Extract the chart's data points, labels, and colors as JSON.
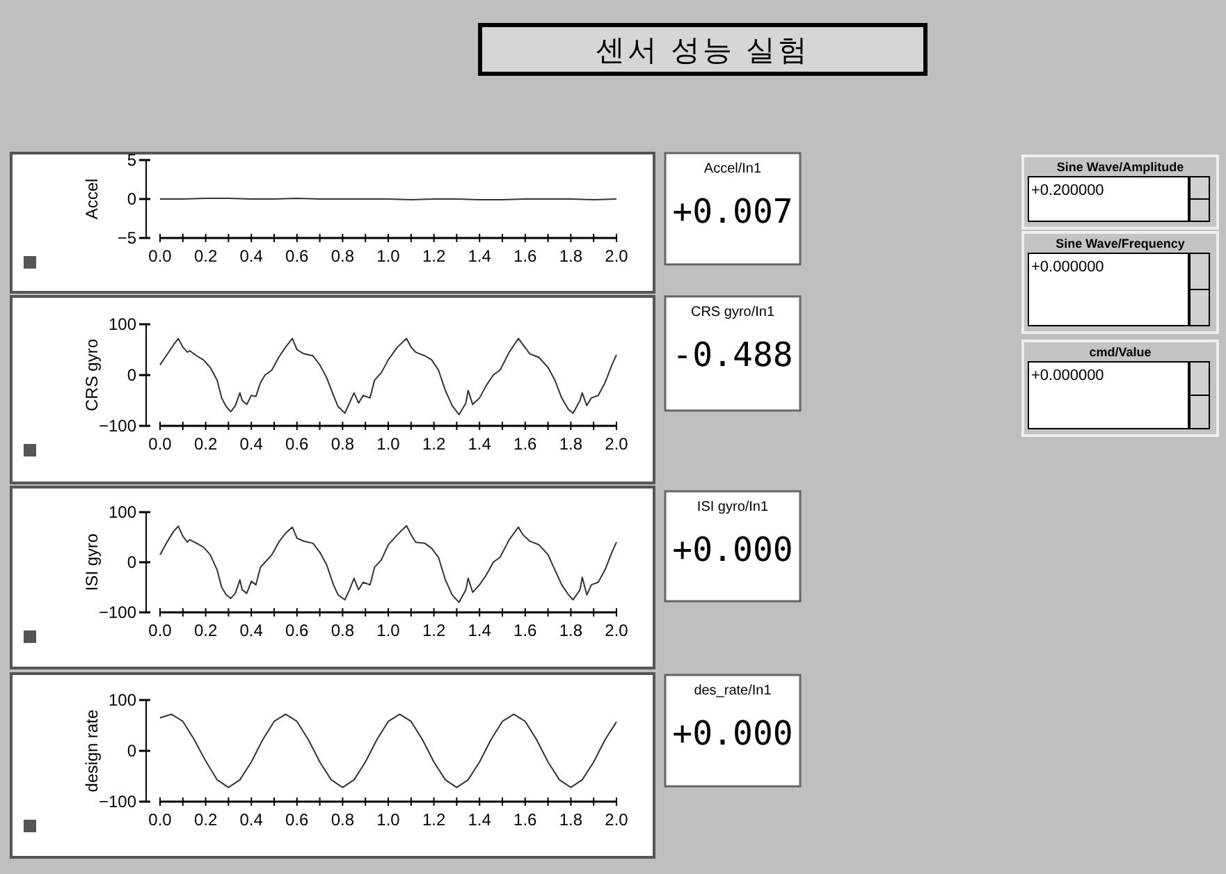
{
  "chart_data": [
    {
      "type": "other",
      "title": "센서 성능 실험"
    },
    {
      "type": "line",
      "ylabel": "Accel",
      "xlim": [
        0,
        2
      ],
      "ylim": [
        -5,
        5
      ],
      "yticks": [
        -5,
        0,
        5
      ],
      "xticks": [
        {
          "value": 0,
          "label": "0.0"
        },
        {
          "value": 0.1,
          "label": null
        },
        {
          "value": 0.2,
          "label": "0.2"
        },
        {
          "value": 0.3,
          "label": null
        },
        {
          "value": 0.4,
          "label": "0.4"
        },
        {
          "value": 0.5,
          "label": null
        },
        {
          "value": 0.6,
          "label": "0.6"
        },
        {
          "value": 0.7,
          "label": null
        },
        {
          "value": 0.8,
          "label": "0.8"
        },
        {
          "value": 0.9,
          "label": null
        },
        {
          "value": 1,
          "label": "1.0"
        },
        {
          "value": 1.1,
          "label": null
        },
        {
          "value": 1.2,
          "label": "1.2"
        },
        {
          "value": 1.3,
          "label": null
        },
        {
          "value": 1.4,
          "label": "1.4"
        },
        {
          "value": 1.5,
          "label": null
        },
        {
          "value": 1.6,
          "label": "1.6"
        },
        {
          "value": 1.7,
          "label": null
        },
        {
          "value": 1.8,
          "label": "1.8"
        },
        {
          "value": 1.9,
          "label": null
        },
        {
          "value": 2,
          "label": "2.0"
        }
      ],
      "x": [
        0,
        0.1,
        0.2,
        0.3,
        0.4,
        0.5,
        0.6,
        0.7,
        0.8,
        0.9,
        1.0,
        1.1,
        1.2,
        1.3,
        1.4,
        1.5,
        1.6,
        1.7,
        1.8,
        1.9,
        2.0
      ],
      "series": [
        {
          "color": "#333333",
          "values": [
            0,
            0,
            0.1,
            0.1,
            0,
            0,
            0.1,
            0,
            0,
            0,
            0,
            -0.1,
            0,
            0,
            -0.1,
            -0.1,
            0,
            0,
            0,
            -0.1,
            0
          ]
        }
      ]
    },
    {
      "type": "other",
      "title": "Accel/In1",
      "annotations": [
        "+0.007"
      ]
    },
    {
      "type": "line",
      "ylabel": "CRS gyro",
      "xlim": [
        0,
        2
      ],
      "ylim": [
        -100,
        100
      ],
      "yticks": [
        -100,
        0,
        100
      ],
      "xticks": [
        {
          "value": 0,
          "label": "0.0"
        },
        {
          "value": 0.1,
          "label": null
        },
        {
          "value": 0.2,
          "label": "0.2"
        },
        {
          "value": 0.3,
          "label": null
        },
        {
          "value": 0.4,
          "label": "0.4"
        },
        {
          "value": 0.5,
          "label": null
        },
        {
          "value": 0.6,
          "label": "0.6"
        },
        {
          "value": 0.7,
          "label": null
        },
        {
          "value": 0.8,
          "label": "0.8"
        },
        {
          "value": 0.9,
          "label": null
        },
        {
          "value": 1,
          "label": "1.0"
        },
        {
          "value": 1.1,
          "label": null
        },
        {
          "value": 1.2,
          "label": "1.2"
        },
        {
          "value": 1.3,
          "label": null
        },
        {
          "value": 1.4,
          "label": "1.4"
        },
        {
          "value": 1.5,
          "label": null
        },
        {
          "value": 1.6,
          "label": "1.6"
        },
        {
          "value": 1.7,
          "label": null
        },
        {
          "value": 1.8,
          "label": "1.8"
        },
        {
          "value": 1.9,
          "label": null
        },
        {
          "value": 2,
          "label": "2.0"
        }
      ],
      "x": [
        0,
        0.03,
        0.06,
        0.08,
        0.1,
        0.12,
        0.13,
        0.16,
        0.19,
        0.22,
        0.25,
        0.27,
        0.29,
        0.31,
        0.33,
        0.35,
        0.36,
        0.38,
        0.4,
        0.42,
        0.44,
        0.46,
        0.49,
        0.52,
        0.55,
        0.58,
        0.6,
        0.63,
        0.67,
        0.7,
        0.73,
        0.76,
        0.78,
        0.81,
        0.83,
        0.85,
        0.87,
        0.89,
        0.92,
        0.94,
        0.97,
        1.0,
        1.04,
        1.08,
        1.1,
        1.12,
        1.16,
        1.19,
        1.22,
        1.25,
        1.28,
        1.31,
        1.34,
        1.35,
        1.37,
        1.4,
        1.43,
        1.46,
        1.49,
        1.53,
        1.57,
        1.59,
        1.62,
        1.66,
        1.7,
        1.73,
        1.76,
        1.79,
        1.81,
        1.84,
        1.85,
        1.87,
        1.89,
        1.92,
        1.95,
        1.98,
        2.0
      ],
      "series": [
        {
          "color": "#333333",
          "values": [
            20,
            40,
            60,
            72,
            55,
            45,
            48,
            38,
            30,
            15,
            -10,
            -45,
            -62,
            -72,
            -60,
            -35,
            -50,
            -58,
            -40,
            -42,
            -15,
            0,
            10,
            35,
            55,
            72,
            50,
            42,
            38,
            20,
            -5,
            -40,
            -62,
            -75,
            -55,
            -35,
            -55,
            -40,
            -45,
            -10,
            5,
            30,
            55,
            72,
            55,
            45,
            38,
            30,
            10,
            -30,
            -60,
            -78,
            -55,
            -30,
            -58,
            -45,
            -20,
            0,
            10,
            45,
            72,
            60,
            42,
            35,
            15,
            -10,
            -45,
            -68,
            -75,
            -50,
            -35,
            -60,
            -45,
            -40,
            -15,
            20,
            40
          ]
        }
      ]
    },
    {
      "type": "other",
      "title": "CRS gyro/In1",
      "annotations": [
        "-0.488"
      ]
    },
    {
      "type": "line",
      "ylabel": "ISI gyro",
      "xlim": [
        0,
        2
      ],
      "ylim": [
        -100,
        100
      ],
      "yticks": [
        -100,
        0,
        100
      ],
      "xticks": [
        {
          "value": 0,
          "label": "0.0"
        },
        {
          "value": 0.1,
          "label": null
        },
        {
          "value": 0.2,
          "label": "0.2"
        },
        {
          "value": 0.3,
          "label": null
        },
        {
          "value": 0.4,
          "label": "0.4"
        },
        {
          "value": 0.5,
          "label": null
        },
        {
          "value": 0.6,
          "label": "0.6"
        },
        {
          "value": 0.7,
          "label": null
        },
        {
          "value": 0.8,
          "label": "0.8"
        },
        {
          "value": 0.9,
          "label": null
        },
        {
          "value": 1,
          "label": "1.0"
        },
        {
          "value": 1.1,
          "label": null
        },
        {
          "value": 1.2,
          "label": "1.2"
        },
        {
          "value": 1.3,
          "label": null
        },
        {
          "value": 1.4,
          "label": "1.4"
        },
        {
          "value": 1.5,
          "label": null
        },
        {
          "value": 1.6,
          "label": "1.6"
        },
        {
          "value": 1.7,
          "label": null
        },
        {
          "value": 1.8,
          "label": "1.8"
        },
        {
          "value": 1.9,
          "label": null
        },
        {
          "value": 2,
          "label": "2.0"
        }
      ],
      "x": [
        0,
        0.03,
        0.06,
        0.08,
        0.1,
        0.12,
        0.13,
        0.16,
        0.19,
        0.22,
        0.25,
        0.27,
        0.29,
        0.31,
        0.33,
        0.35,
        0.36,
        0.38,
        0.4,
        0.42,
        0.44,
        0.46,
        0.49,
        0.52,
        0.55,
        0.58,
        0.6,
        0.63,
        0.67,
        0.7,
        0.73,
        0.76,
        0.78,
        0.81,
        0.83,
        0.85,
        0.87,
        0.89,
        0.92,
        0.94,
        0.97,
        1.0,
        1.04,
        1.08,
        1.1,
        1.12,
        1.16,
        1.19,
        1.22,
        1.25,
        1.28,
        1.31,
        1.34,
        1.35,
        1.37,
        1.4,
        1.43,
        1.46,
        1.49,
        1.53,
        1.57,
        1.59,
        1.62,
        1.66,
        1.7,
        1.73,
        1.76,
        1.79,
        1.81,
        1.84,
        1.85,
        1.87,
        1.89,
        1.92,
        1.95,
        1.98,
        2.0
      ],
      "series": [
        {
          "color": "#333333",
          "values": [
            15,
            40,
            62,
            72,
            52,
            40,
            45,
            38,
            30,
            15,
            -15,
            -50,
            -65,
            -72,
            -62,
            -35,
            -55,
            -62,
            -38,
            -45,
            -10,
            0,
            15,
            40,
            58,
            70,
            48,
            42,
            38,
            20,
            -5,
            -45,
            -65,
            -75,
            -55,
            -32,
            -55,
            -40,
            -45,
            -10,
            5,
            35,
            55,
            73,
            55,
            40,
            38,
            28,
            10,
            -35,
            -65,
            -80,
            -55,
            -32,
            -60,
            -45,
            -25,
            0,
            10,
            45,
            70,
            55,
            42,
            35,
            15,
            -15,
            -45,
            -65,
            -75,
            -55,
            -30,
            -65,
            -45,
            -40,
            -15,
            20,
            40
          ]
        }
      ]
    },
    {
      "type": "other",
      "title": "ISI gyro/In1",
      "annotations": [
        "+0.000"
      ]
    },
    {
      "type": "line",
      "ylabel": "design rate",
      "xlim": [
        0,
        2
      ],
      "ylim": [
        -100,
        100
      ],
      "yticks": [
        -100,
        0,
        100
      ],
      "xticks": [
        {
          "value": 0,
          "label": "0.0"
        },
        {
          "value": 0.1,
          "label": null
        },
        {
          "value": 0.2,
          "label": "0.2"
        },
        {
          "value": 0.3,
          "label": null
        },
        {
          "value": 0.4,
          "label": "0.4"
        },
        {
          "value": 0.5,
          "label": null
        },
        {
          "value": 0.6,
          "label": "0.6"
        },
        {
          "value": 0.7,
          "label": null
        },
        {
          "value": 0.8,
          "label": "0.8"
        },
        {
          "value": 0.9,
          "label": null
        },
        {
          "value": 1,
          "label": "1.0"
        },
        {
          "value": 1.1,
          "label": null
        },
        {
          "value": 1.2,
          "label": "1.2"
        },
        {
          "value": 1.3,
          "label": null
        },
        {
          "value": 1.4,
          "label": "1.4"
        },
        {
          "value": 1.5,
          "label": null
        },
        {
          "value": 1.6,
          "label": "1.6"
        },
        {
          "value": 1.7,
          "label": null
        },
        {
          "value": 1.8,
          "label": "1.8"
        },
        {
          "value": 1.9,
          "label": null
        },
        {
          "value": 2,
          "label": "2.0"
        }
      ],
      "x": [
        0,
        0.05,
        0.1,
        0.15,
        0.2,
        0.25,
        0.3,
        0.35,
        0.4,
        0.45,
        0.5,
        0.55,
        0.6,
        0.65,
        0.7,
        0.75,
        0.8,
        0.85,
        0.9,
        0.95,
        1.0,
        1.05,
        1.1,
        1.15,
        1.2,
        1.25,
        1.3,
        1.35,
        1.4,
        1.45,
        1.5,
        1.55,
        1.6,
        1.65,
        1.7,
        1.75,
        1.8,
        1.85,
        1.9,
        1.95,
        2.0
      ],
      "series": [
        {
          "color": "#333333",
          "values": [
            65,
            72,
            58,
            22,
            -20,
            -57,
            -72,
            -57,
            -22,
            22,
            58,
            72,
            58,
            22,
            -22,
            -57,
            -72,
            -57,
            -22,
            22,
            58,
            72,
            58,
            22,
            -22,
            -57,
            -72,
            -57,
            -22,
            22,
            58,
            72,
            58,
            22,
            -22,
            -57,
            -72,
            -57,
            -22,
            22,
            57
          ]
        }
      ]
    },
    {
      "type": "other",
      "title": "des_rate/In1",
      "annotations": [
        "+0.000"
      ]
    },
    {
      "type": "other",
      "title": "Sine Wave/Amplitude",
      "annotations": [
        "+0.200000"
      ]
    },
    {
      "type": "other",
      "title": "Sine Wave/Frequency",
      "annotations": [
        "+0.000000"
      ]
    },
    {
      "type": "other",
      "title": "cmd/Value",
      "annotations": [
        "+0.000000"
      ]
    }
  ]
}
